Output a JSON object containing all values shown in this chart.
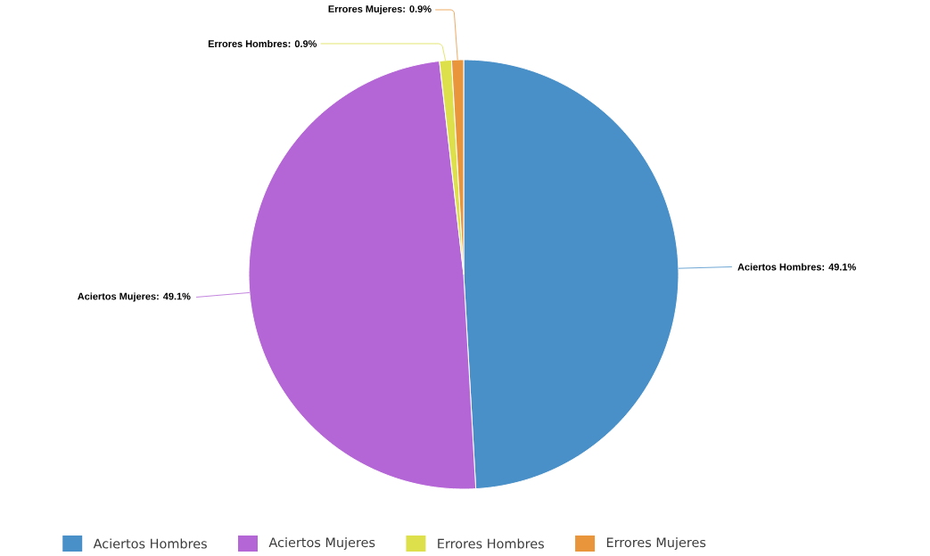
{
  "chart_data": {
    "type": "pie",
    "categories": [
      "Aciertos Hombres",
      "Aciertos Mujeres",
      "Errores Hombres",
      "Errores Mujeres"
    ],
    "values": [
      49.1,
      49.1,
      0.9,
      0.9
    ],
    "value_labels": [
      "Aciertos Hombres: 49.1%",
      "Aciertos Mujeres: 49.1%",
      "Errores Hombres: 0.9%",
      "Errores Mujeres: 0.9%"
    ],
    "colors": [
      "#4a90c8",
      "#b466d6",
      "#dde04b",
      "#e8953c"
    ],
    "legend": "bottom"
  }
}
